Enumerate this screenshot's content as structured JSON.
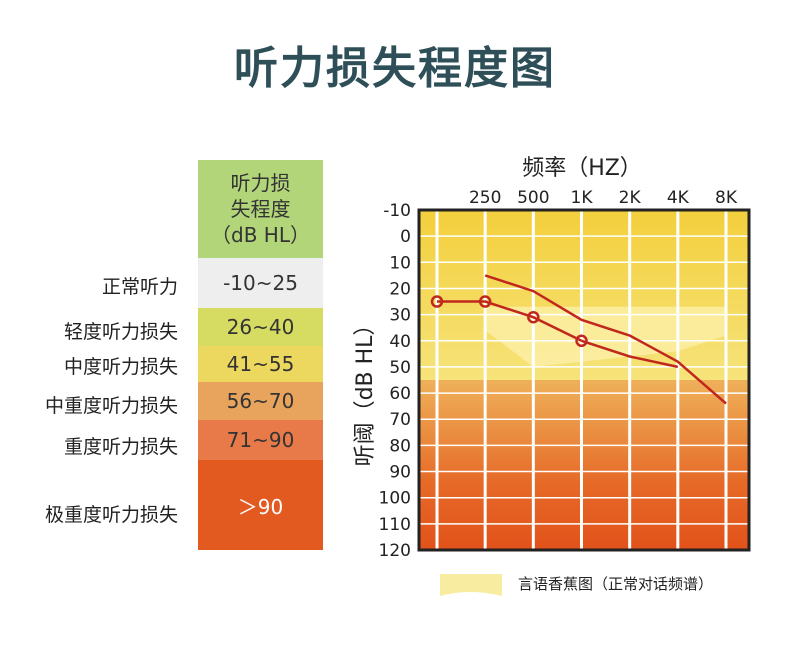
{
  "title": "听力损失程度图",
  "legend": {
    "header": [
      "听力损",
      "失程度",
      "（dB HL）"
    ],
    "header_color": "#b2d57a",
    "rows": [
      {
        "label": "正常听力",
        "range": "-10~25",
        "color": "#eeeeee"
      },
      {
        "label": "轻度听力损失",
        "range": "26~40",
        "color": "#d6dc62"
      },
      {
        "label": "中度听力损失",
        "range": "41~55",
        "color": "#ecd85e"
      },
      {
        "label": "中重度听力损失",
        "range": "56~70",
        "color": "#e8a35c"
      },
      {
        "label": "重度听力损失",
        "range": "71~90",
        "color": "#e77a48"
      },
      {
        "label": "极重度听力损失",
        "range": "＞90",
        "color": "#e35a21"
      }
    ]
  },
  "chart_data": {
    "type": "line",
    "title": "频率（HZ）",
    "xlabel": "频率（HZ）",
    "ylabel": "听阈（dB HL）",
    "x_tick_labels": [
      "250",
      "500",
      "1K",
      "2K",
      "4K",
      "8K"
    ],
    "x_ticks_values": [
      250,
      500,
      1000,
      2000,
      4000,
      8000
    ],
    "y_tick_labels": [
      "-10",
      "0",
      "10",
      "20",
      "30",
      "40",
      "50",
      "60",
      "70",
      "80",
      "90",
      "100",
      "110",
      "120"
    ],
    "ylim": [
      -10,
      120
    ],
    "bands": [
      {
        "from": -10,
        "to": 25,
        "color": "#f2d64a"
      },
      {
        "from": 25,
        "to": 40,
        "color": "#f2d64a"
      },
      {
        "from": 40,
        "to": 55,
        "color": "#f2d64a"
      },
      {
        "from": 55,
        "to": 70,
        "color": "#eda84f"
      },
      {
        "from": 70,
        "to": 90,
        "color": "#e97c3a"
      },
      {
        "from": 90,
        "to": 120,
        "color": "#e4581c"
      }
    ],
    "series": [
      {
        "name": "curve-1",
        "color": "#c0281e",
        "marker": "circle",
        "x": [
          125,
          250,
          500,
          1000
        ],
        "y": [
          25,
          25,
          31,
          40
        ]
      },
      {
        "name": "curve-1-ext",
        "color": "#c0281e",
        "marker": "none",
        "x": [
          1000,
          2000,
          4000
        ],
        "y": [
          40,
          46,
          50
        ]
      },
      {
        "name": "curve-2",
        "color": "#c0281e",
        "marker": "none",
        "x": [
          250,
          500,
          1000,
          2000,
          4000,
          8000
        ],
        "y": [
          15,
          21,
          32,
          38,
          48,
          64
        ]
      }
    ],
    "banana_note": "言语香蕉图（正常对话频谱）"
  }
}
